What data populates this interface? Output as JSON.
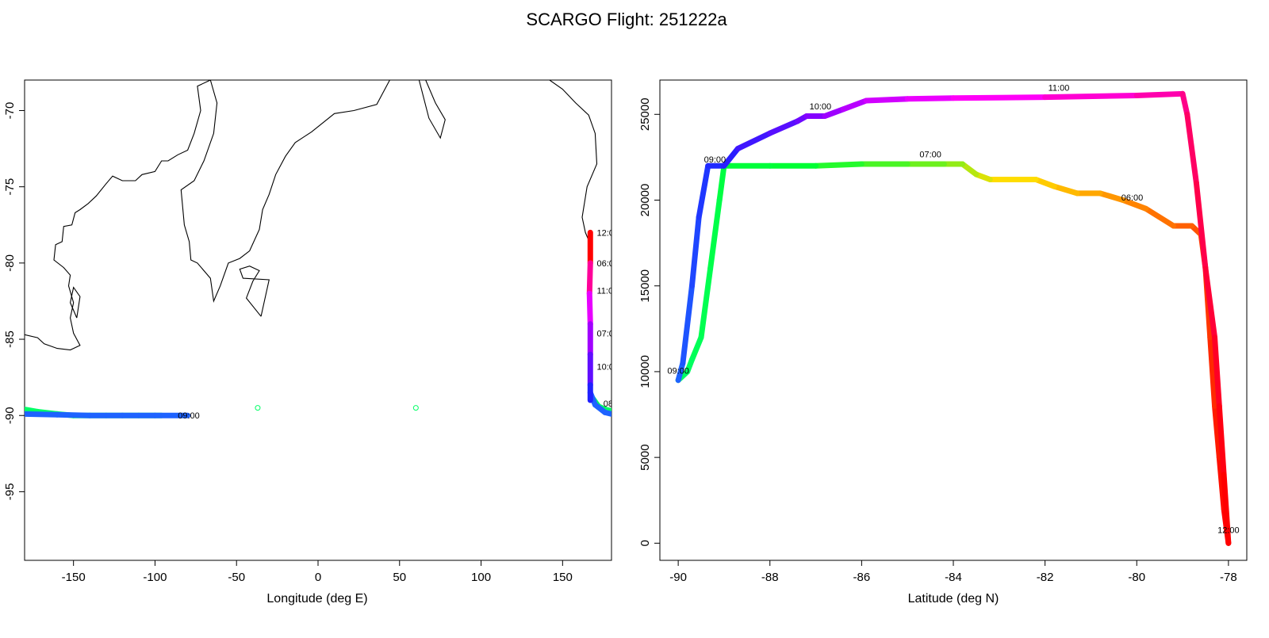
{
  "title": "SCARGO Flight: 251222a",
  "colors": {
    "axis": "#000000",
    "coast": "#000000",
    "rainbow": [
      "#ff0000",
      "#ff6000",
      "#ffcc00",
      "#00ff33",
      "#1e63ff",
      "#2020ff",
      "#8a00ff",
      "#ff00ff",
      "#ff0055"
    ]
  },
  "chart_data": [
    {
      "type": "scatter",
      "name": "map",
      "xlabel": "Longitude (deg E)",
      "ylabel": "",
      "xlim": [
        -180,
        180
      ],
      "ylim": [
        -99.5,
        -68
      ],
      "x_ticks": [
        -150,
        -100,
        -50,
        0,
        50,
        100,
        150
      ],
      "y_ticks": [
        -95,
        -90,
        -85,
        -80,
        -75,
        -70
      ],
      "coastlines": [
        [
          [
            -180,
            -84.7
          ],
          [
            -172,
            -84.9
          ],
          [
            -168,
            -85.3
          ],
          [
            -160,
            -85.6
          ],
          [
            -152,
            -85.7
          ],
          [
            -150,
            -85.6
          ],
          [
            -146,
            -85.4
          ],
          [
            -150,
            -84.6
          ],
          [
            -152,
            -83.6
          ],
          [
            -150,
            -82.6
          ],
          [
            -153,
            -81.5
          ],
          [
            -152,
            -80.8
          ],
          [
            -156,
            -80.3
          ],
          [
            -162,
            -79.8
          ],
          [
            -161,
            -78.8
          ],
          [
            -157,
            -78.6
          ],
          [
            -156,
            -77.6
          ],
          [
            -151,
            -77.5
          ],
          [
            -149,
            -76.7
          ],
          [
            -146,
            -76.5
          ],
          [
            -141,
            -76.1
          ],
          [
            -136,
            -75.6
          ],
          [
            -130,
            -74.8
          ],
          [
            -126,
            -74.3
          ],
          [
            -120,
            -74.6
          ],
          [
            -112,
            -74.6
          ],
          [
            -108,
            -74.2
          ],
          [
            -100,
            -74.0
          ],
          [
            -96,
            -73.3
          ],
          [
            -92,
            -73.3
          ],
          [
            -86,
            -72.9
          ],
          [
            -80,
            -72.6
          ],
          [
            -76,
            -71.5
          ],
          [
            -72,
            -70.0
          ],
          [
            -74,
            -68.4
          ],
          [
            -66,
            -68.0
          ],
          [
            -62,
            -69.5
          ],
          [
            -64,
            -71.5
          ],
          [
            -70,
            -73.3
          ],
          [
            -76,
            -74.6
          ],
          [
            -84,
            -75.2
          ],
          [
            -82,
            -77.5
          ],
          [
            -79,
            -78.6
          ],
          [
            -78,
            -79.8
          ],
          [
            -74,
            -80.0
          ],
          [
            -66,
            -81.0
          ],
          [
            -64,
            -82.5
          ],
          [
            -60,
            -81.5
          ],
          [
            -55,
            -80.0
          ],
          [
            -48,
            -79.7
          ],
          [
            -42,
            -79.2
          ],
          [
            -36,
            -77.8
          ],
          [
            -34,
            -76.5
          ],
          [
            -30,
            -75.5
          ],
          [
            -26,
            -74.2
          ],
          [
            -20,
            -73.0
          ],
          [
            -14,
            -72.1
          ],
          [
            -4,
            -71.4
          ],
          [
            10,
            -70.2
          ],
          [
            22,
            -70.0
          ],
          [
            36,
            -69.6
          ],
          [
            44,
            -68.0
          ]
        ],
        [
          [
            -148,
            -83.6
          ],
          [
            -152,
            -82.6
          ],
          [
            -150,
            -81.6
          ],
          [
            -146,
            -82.2
          ],
          [
            -148,
            -83.6
          ]
        ],
        [
          [
            -35,
            -83.5
          ],
          [
            -44,
            -82.3
          ],
          [
            -40,
            -81.2
          ],
          [
            -36,
            -80.5
          ],
          [
            -42,
            -80.2
          ],
          [
            -48,
            -80.4
          ],
          [
            -46,
            -81.0
          ],
          [
            -30,
            -81.1
          ],
          [
            -35,
            -83.5
          ]
        ],
        [
          [
            62,
            -68.0
          ],
          [
            68,
            -70.5
          ],
          [
            75,
            -71.8
          ],
          [
            78,
            -70.6
          ],
          [
            72,
            -69.5
          ],
          [
            66,
            -68.0
          ]
        ],
        [
          [
            142,
            -68.0
          ],
          [
            150,
            -68.6
          ],
          [
            158,
            -69.5
          ],
          [
            166,
            -70.3
          ],
          [
            170,
            -71.5
          ],
          [
            171,
            -73.5
          ],
          [
            165,
            -75.0
          ],
          [
            162,
            -77.0
          ],
          [
            164,
            -78.0
          ],
          [
            168,
            -79.0
          ]
        ]
      ],
      "series": [
        {
          "color": "#00ff66",
          "points": [
            [
              -180,
              -89.6
            ],
            [
              -172,
              -89.75
            ],
            [
              -160,
              -89.9
            ],
            [
              -150,
              -90.0
            ],
            [
              -130,
              -90.0
            ],
            [
              -110,
              -90.0
            ],
            [
              -96,
              -90.0
            ]
          ]
        },
        {
          "color": "#1e63ff",
          "points": [
            [
              -180,
              -89.9
            ],
            [
              -160,
              -89.95
            ],
            [
              -140,
              -90.0
            ],
            [
              -120,
              -90.0
            ],
            [
              -100,
              -90.0
            ],
            [
              -80,
              -90.0
            ]
          ]
        },
        {
          "color": "#00ff66",
          "points": [
            [
              168,
              -88.8
            ],
            [
              172,
              -89.4
            ],
            [
              176,
              -89.6
            ],
            [
              180,
              -89.7
            ]
          ]
        },
        {
          "color": "#1e63ff",
          "points": [
            [
              167,
              -88.5
            ],
            [
              170,
              -89.3
            ],
            [
              176,
              -89.8
            ],
            [
              180,
              -89.9
            ]
          ]
        },
        {
          "color": "gradient",
          "points": [
            [
              167,
              -78.0
            ],
            [
              167,
              -80.0
            ],
            [
              166.5,
              -82.0
            ],
            [
              167,
              -84.0
            ],
            [
              167,
              -86.0
            ],
            [
              167,
              -88.0
            ],
            [
              167,
              -89.0
            ]
          ]
        }
      ],
      "outliers": [
        [
          -37,
          -89.5
        ],
        [
          60,
          -89.5
        ]
      ],
      "labels": [
        {
          "text": "09:00",
          "x": -86,
          "y": -90.0
        },
        {
          "text": "12:0",
          "x": 171,
          "y": -78.0
        },
        {
          "text": "06:0",
          "x": 171,
          "y": -80.0
        },
        {
          "text": "11:0",
          "x": 171,
          "y": -81.8
        },
        {
          "text": "07:0",
          "x": 171,
          "y": -84.6
        },
        {
          "text": "10:0",
          "x": 171,
          "y": -86.8
        },
        {
          "text": "08",
          "x": 175,
          "y": -89.2
        }
      ]
    },
    {
      "type": "line",
      "name": "altitude",
      "xlabel": "Latitude (deg N)",
      "ylabel": "",
      "xlim": [
        -90.4,
        -77.6
      ],
      "ylim": [
        -1000,
        27000
      ],
      "x_ticks": [
        -90,
        -88,
        -86,
        -84,
        -82,
        -80,
        -78
      ],
      "y_ticks": [
        0,
        5000,
        10000,
        15000,
        20000,
        25000
      ],
      "series": [
        {
          "stops": [
            "#ff0000",
            "#ff6000",
            "#ffdd00",
            "#00ff33",
            "#00ff66"
          ],
          "points": [
            [
              -78.0,
              0
            ],
            [
              -78.1,
              2000
            ],
            [
              -78.2,
              5000
            ],
            [
              -78.3,
              8000
            ],
            [
              -78.4,
              12000
            ],
            [
              -78.5,
              16000
            ],
            [
              -78.6,
              18000
            ],
            [
              -78.8,
              18500
            ],
            [
              -79.2,
              18500
            ],
            [
              -79.8,
              19500
            ],
            [
              -80.3,
              20000
            ],
            [
              -80.8,
              20400
            ],
            [
              -81.3,
              20400
            ],
            [
              -81.8,
              20800
            ],
            [
              -82.2,
              21200
            ],
            [
              -83.2,
              21200
            ],
            [
              -83.5,
              21500
            ],
            [
              -83.8,
              22100
            ],
            [
              -84.2,
              22100
            ],
            [
              -85.0,
              22100
            ],
            [
              -86.0,
              22100
            ],
            [
              -87.0,
              22000
            ],
            [
              -88.0,
              22000
            ],
            [
              -89.0,
              22000
            ],
            [
              -89.1,
              20000
            ],
            [
              -89.3,
              16000
            ],
            [
              -89.5,
              12000
            ],
            [
              -89.7,
              10700
            ],
            [
              -89.8,
              10000
            ],
            [
              -90.0,
              9500
            ]
          ]
        },
        {
          "stops": [
            "#1e63ff",
            "#2020ff",
            "#8a00ff",
            "#ff00ff",
            "#ff0055",
            "#ff0000"
          ],
          "points": [
            [
              -90.0,
              9500
            ],
            [
              -89.9,
              10500
            ],
            [
              -89.7,
              15000
            ],
            [
              -89.55,
              19000
            ],
            [
              -89.35,
              22000
            ],
            [
              -89.0,
              22000
            ],
            [
              -88.7,
              23000
            ],
            [
              -88.0,
              23900
            ],
            [
              -87.4,
              24600
            ],
            [
              -87.2,
              24900
            ],
            [
              -86.8,
              24900
            ],
            [
              -86.4,
              25300
            ],
            [
              -85.9,
              25800
            ],
            [
              -85.0,
              25900
            ],
            [
              -84.0,
              25950
            ],
            [
              -82.0,
              26000
            ],
            [
              -80.0,
              26100
            ],
            [
              -79.0,
              26200
            ],
            [
              -78.9,
              25000
            ],
            [
              -78.7,
              21000
            ],
            [
              -78.5,
              16000
            ],
            [
              -78.3,
              12000
            ],
            [
              -78.2,
              8000
            ],
            [
              -78.1,
              4000
            ],
            [
              -78.0,
              0
            ]
          ]
        }
      ],
      "labels": [
        {
          "text": "09:00",
          "x": -89.2,
          "y": 22000
        },
        {
          "text": "07:00",
          "x": -84.5,
          "y": 22300
        },
        {
          "text": "10:00",
          "x": -86.9,
          "y": 25100
        },
        {
          "text": "11:00",
          "x": -81.7,
          "y": 26200
        },
        {
          "text": "06:00",
          "x": -80.1,
          "y": 19800
        },
        {
          "text": "09:00",
          "x": -90.0,
          "y": 9700
        },
        {
          "text": "12:00",
          "x": -78.0,
          "y": 400
        }
      ]
    }
  ]
}
